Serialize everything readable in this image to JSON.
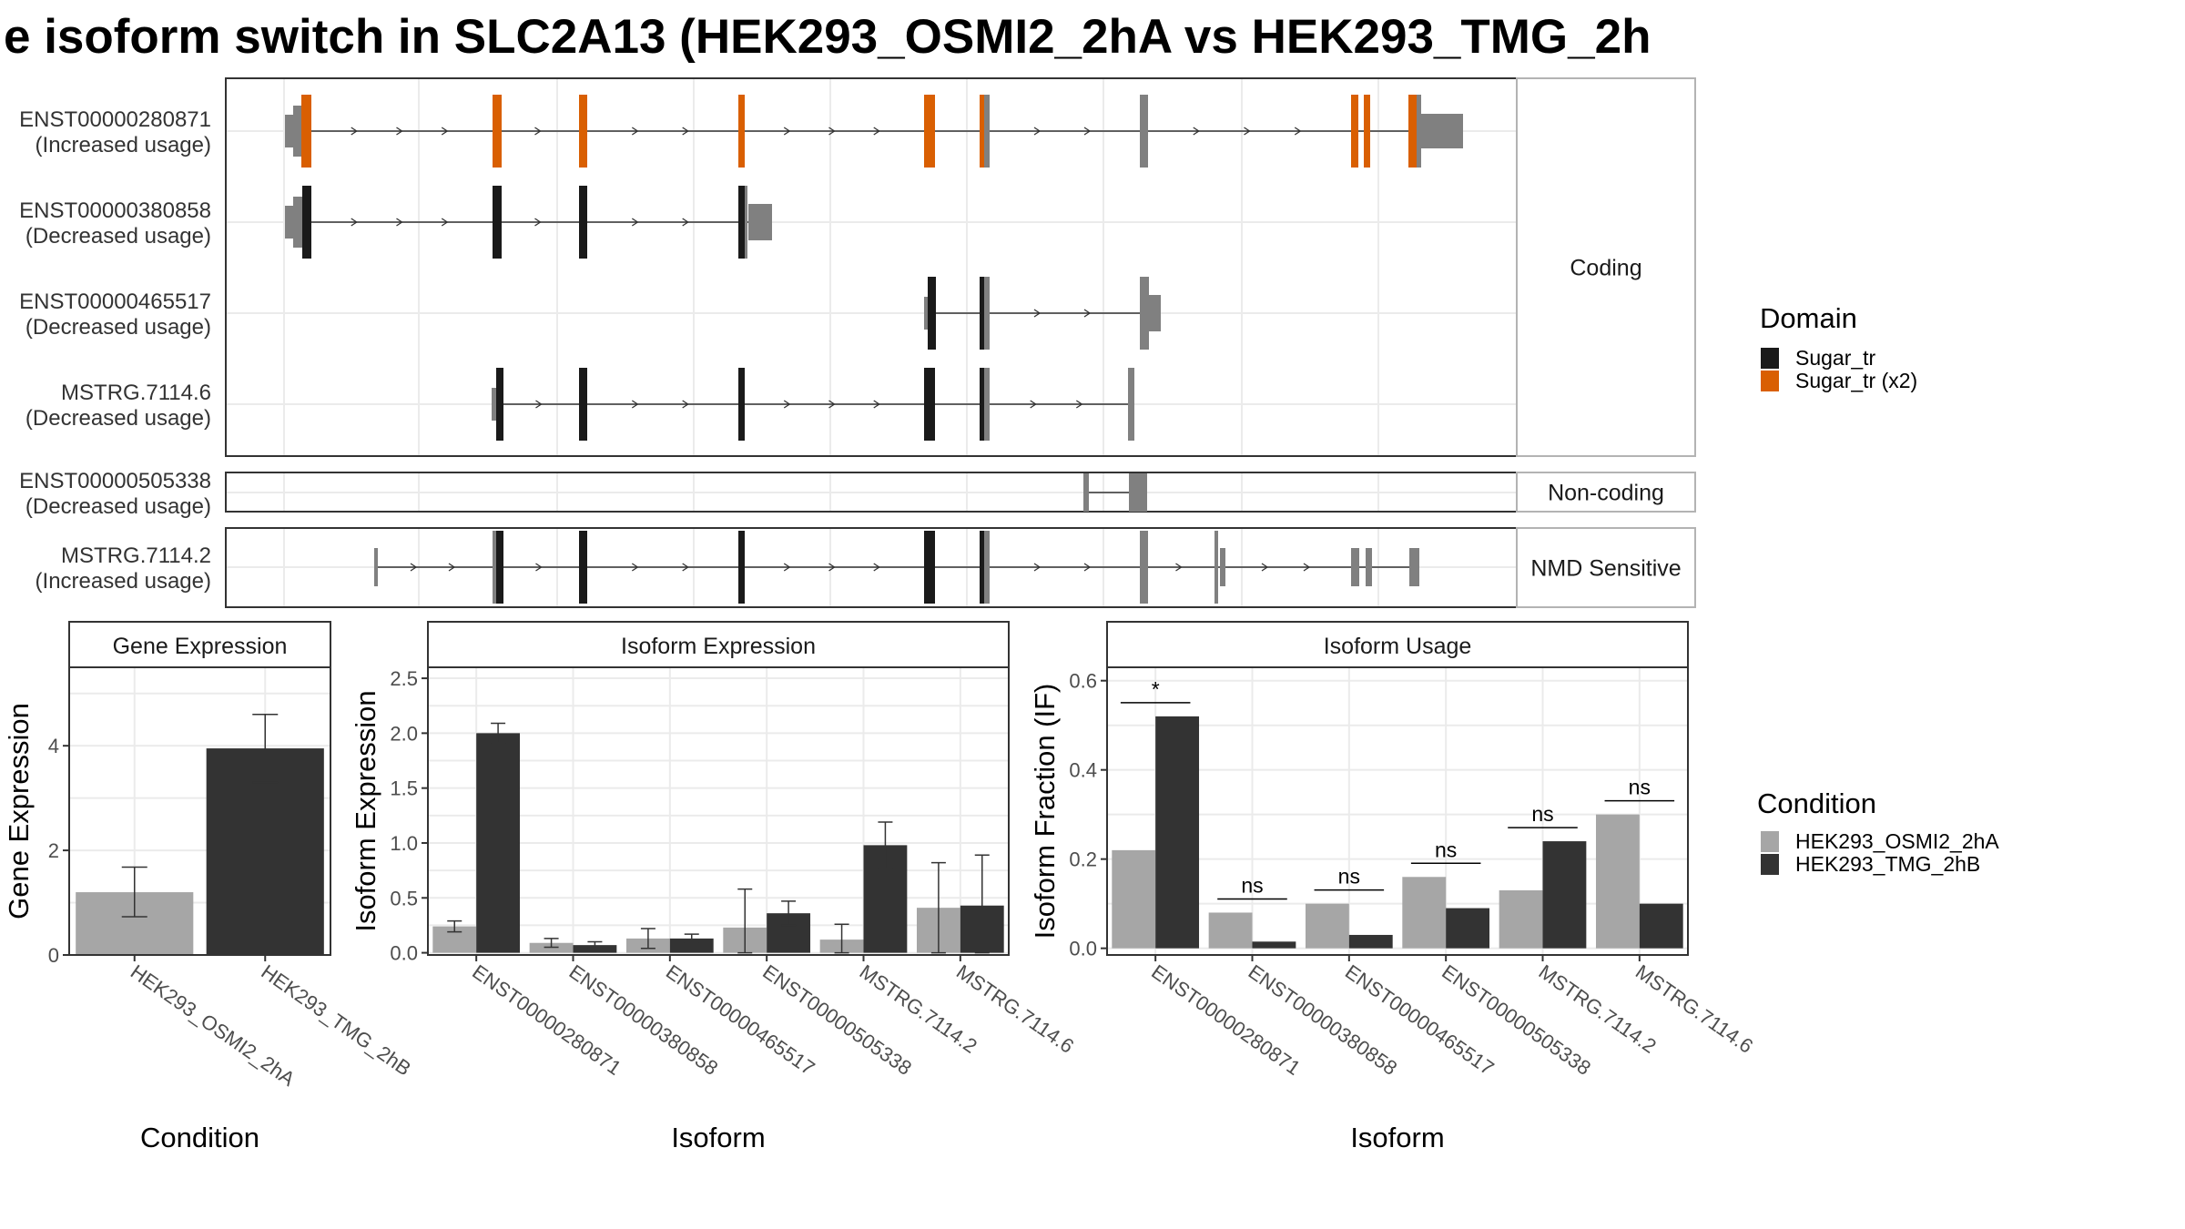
{
  "title": "e isoform switch in SLC2A13 (HEK293_OSMI2_2hA vs HEK293_TMG_2h",
  "colors": {
    "sugar_tr": "#1a1a1a",
    "sugar_tr_x2": "#d95f02",
    "utr": "#808080",
    "cond_a": "#a6a6a6",
    "cond_b": "#333333"
  },
  "structure": {
    "groups": [
      {
        "label": "Coding",
        "transcripts": [
          {
            "id": "ENST00000280871",
            "usage": "(Increased usage)"
          },
          {
            "id": "ENST00000380858",
            "usage": "(Decreased usage)"
          },
          {
            "id": "ENST00000465517",
            "usage": "(Decreased usage)"
          },
          {
            "id": "MSTRG.7114.6",
            "usage": "(Decreased usage)"
          }
        ]
      },
      {
        "label": "Non-coding",
        "transcripts": [
          {
            "id": "ENST00000505338",
            "usage": "(Decreased usage)"
          }
        ]
      },
      {
        "label": "NMD Sensitive",
        "transcripts": [
          {
            "id": "MSTRG.7114.2",
            "usage": "(Increased usage)"
          }
        ]
      }
    ],
    "domain_legend": {
      "title": "Domain",
      "items": [
        {
          "label": "Sugar_tr",
          "color": "#1a1a1a"
        },
        {
          "label": "Sugar_tr (x2)",
          "color": "#d95f02"
        }
      ]
    }
  },
  "chart_data": [
    {
      "type": "bar",
      "title": "Gene Expression",
      "xlabel": "Condition",
      "ylabel": "Gene Expression",
      "categories": [
        "HEK293_OSMI2_2hA",
        "HEK293_TMG_2hB"
      ],
      "values": [
        1.2,
        3.95
      ],
      "errors": [
        [
          0.73,
          1.68
        ],
        [
          3.3,
          4.6
        ]
      ],
      "ylim": [
        0,
        5.5
      ],
      "yticks": [
        0,
        2,
        4
      ]
    },
    {
      "type": "bar",
      "title": "Isoform Expression",
      "xlabel": "Isoform",
      "ylabel": "Isoform Expression",
      "categories": [
        "ENST00000280871",
        "ENST00000380858",
        "ENST00000465517",
        "ENST00000505338",
        "MSTRG.7114.2",
        "MSTRG.7114.6"
      ],
      "series": [
        {
          "name": "HEK293_OSMI2_2hA",
          "values": [
            0.24,
            0.09,
            0.13,
            0.23,
            0.12,
            0.41
          ],
          "errors": [
            [
              0.19,
              0.29
            ],
            [
              0.05,
              0.13
            ],
            [
              0.04,
              0.22
            ],
            [
              0.0,
              0.58
            ],
            [
              0.0,
              0.26
            ],
            [
              0.0,
              0.82
            ]
          ]
        },
        {
          "name": "HEK293_TMG_2hB",
          "values": [
            2.0,
            0.07,
            0.13,
            0.36,
            0.98,
            0.43
          ],
          "errors": [
            [
              1.91,
              2.09
            ],
            [
              0.04,
              0.1
            ],
            [
              0.09,
              0.17
            ],
            [
              0.25,
              0.47
            ],
            [
              0.77,
              1.19
            ],
            [
              0.0,
              0.89
            ]
          ]
        }
      ],
      "ylim": [
        -0.02,
        2.6
      ],
      "yticks": [
        "0.0",
        "0.5",
        "1.0",
        "1.5",
        "2.0",
        "2.5"
      ]
    },
    {
      "type": "bar",
      "title": "Isoform Usage",
      "xlabel": "Isoform",
      "ylabel": "Isoform Fraction (IF)",
      "categories": [
        "ENST00000280871",
        "ENST00000380858",
        "ENST00000465517",
        "ENST00000505338",
        "MSTRG.7114.2",
        "MSTRG.7114.6"
      ],
      "series": [
        {
          "name": "HEK293_OSMI2_2hA",
          "values": [
            0.22,
            0.08,
            0.1,
            0.16,
            0.13,
            0.3
          ]
        },
        {
          "name": "HEK293_TMG_2hB",
          "values": [
            0.52,
            0.015,
            0.03,
            0.09,
            0.24,
            0.1
          ]
        }
      ],
      "significance": [
        "*",
        "ns",
        "ns",
        "ns",
        "ns",
        "ns"
      ],
      "ylim": [
        -0.015,
        0.63
      ],
      "yticks": [
        "0.0",
        "0.2",
        "0.4",
        "0.6"
      ]
    }
  ],
  "condition_legend": {
    "title": "Condition",
    "items": [
      {
        "label": "HEK293_OSMI2_2hA",
        "color": "#a6a6a6"
      },
      {
        "label": "HEK293_TMG_2hB",
        "color": "#333333"
      }
    ]
  }
}
